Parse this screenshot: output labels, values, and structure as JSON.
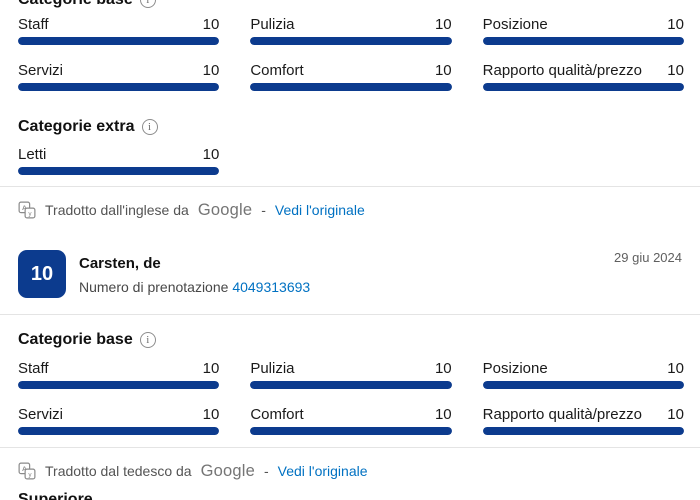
{
  "colors": {
    "accent_navy": "#0c3b8e",
    "link_blue": "#0071c2",
    "text_gray": "#545454",
    "divider_gray": "#e4e4e4"
  },
  "icons": {
    "info_glyph": "i"
  },
  "review_prev": {
    "base_header": "Categorie base",
    "base_ratings": [
      {
        "label": "Staff",
        "value": "10",
        "percent": 100
      },
      {
        "label": "Pulizia",
        "value": "10",
        "percent": 100
      },
      {
        "label": "Posizione",
        "value": "10",
        "percent": 100
      },
      {
        "label": "Servizi",
        "value": "10",
        "percent": 100
      },
      {
        "label": "Comfort",
        "value": "10",
        "percent": 100
      },
      {
        "label": "Rapporto qualità/prezzo",
        "value": "10",
        "percent": 100
      }
    ],
    "extra_header": "Categorie extra",
    "extra_ratings": [
      {
        "label": "Letti",
        "value": "10",
        "percent": 100
      }
    ],
    "translation_note": {
      "prefix": "Tradotto dall'inglese da",
      "brand": "Google",
      "separator": "-",
      "link_label": "Vedi l'originale"
    }
  },
  "review_current": {
    "score": "10",
    "reviewer": "Carsten, de",
    "date": "29 giu 2024",
    "booking_label": "Numero di prenotazione",
    "booking_number": "4049313693",
    "base_header": "Categorie base",
    "base_ratings": [
      {
        "label": "Staff",
        "value": "10",
        "percent": 100
      },
      {
        "label": "Pulizia",
        "value": "10",
        "percent": 100
      },
      {
        "label": "Posizione",
        "value": "10",
        "percent": 100
      },
      {
        "label": "Servizi",
        "value": "10",
        "percent": 100
      },
      {
        "label": "Comfort",
        "value": "10",
        "percent": 100
      },
      {
        "label": "Rapporto qualità/prezzo",
        "value": "10",
        "percent": 100
      }
    ],
    "translation_note": {
      "prefix": "Tradotto dal tedesco da",
      "brand": "Google",
      "separator": "-",
      "link_label": "Vedi l'originale"
    }
  },
  "next_section": {
    "title": "Superiore"
  }
}
